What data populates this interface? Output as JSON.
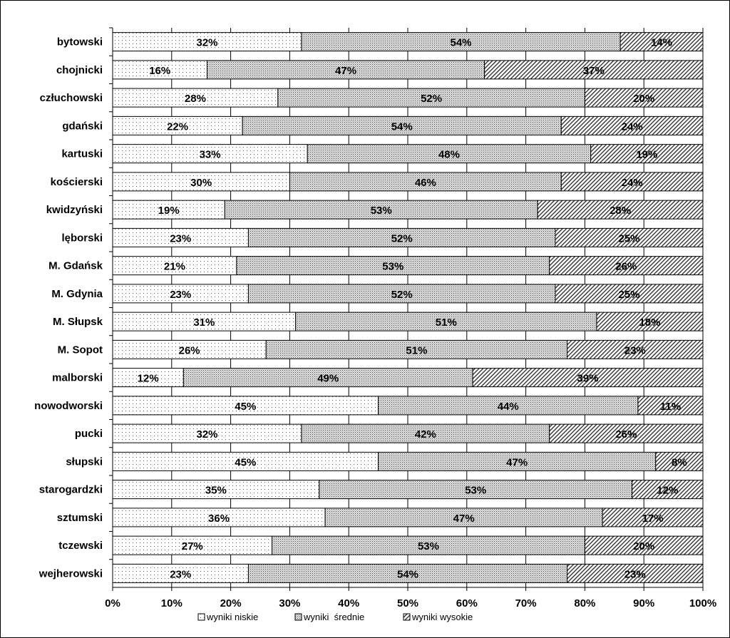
{
  "chart_data": {
    "type": "bar",
    "orientation": "horizontal",
    "stacked": "percent",
    "categories": [
      "bytowski",
      "chojnicki",
      "człuchowski",
      "gdański",
      "kartuski",
      "kościerski",
      "kwidzyński",
      "lęborski",
      "M. Gdańsk",
      "M. Gdynia",
      "M. Słupsk",
      "M. Sopot",
      "malborski",
      "nowodworski",
      "pucki",
      "słupski",
      "starogardzki",
      "sztumski",
      "tczewski",
      "wejherowski"
    ],
    "series": [
      {
        "name": "wyniki niskie",
        "values": [
          32,
          16,
          28,
          22,
          33,
          30,
          19,
          23,
          21,
          23,
          31,
          26,
          12,
          45,
          32,
          45,
          35,
          36,
          27,
          23
        ]
      },
      {
        "name": "wyniki  średnie",
        "values": [
          54,
          47,
          52,
          54,
          48,
          46,
          53,
          52,
          53,
          52,
          51,
          51,
          49,
          44,
          42,
          47,
          53,
          47,
          53,
          54
        ]
      },
      {
        "name": "wyniki wysokie",
        "values": [
          14,
          37,
          20,
          24,
          19,
          24,
          28,
          25,
          26,
          25,
          18,
          23,
          39,
          11,
          26,
          8,
          12,
          17,
          20,
          23
        ]
      }
    ],
    "xlim": [
      0,
      100
    ],
    "x_ticks": [
      0,
      10,
      20,
      30,
      40,
      50,
      60,
      70,
      80,
      90,
      100
    ],
    "x_tick_suffix": "%",
    "grid": true,
    "legend_position": "bottom",
    "patterns": [
      "sparse-dots",
      "dense-dots",
      "diagonal-hatch"
    ]
  }
}
